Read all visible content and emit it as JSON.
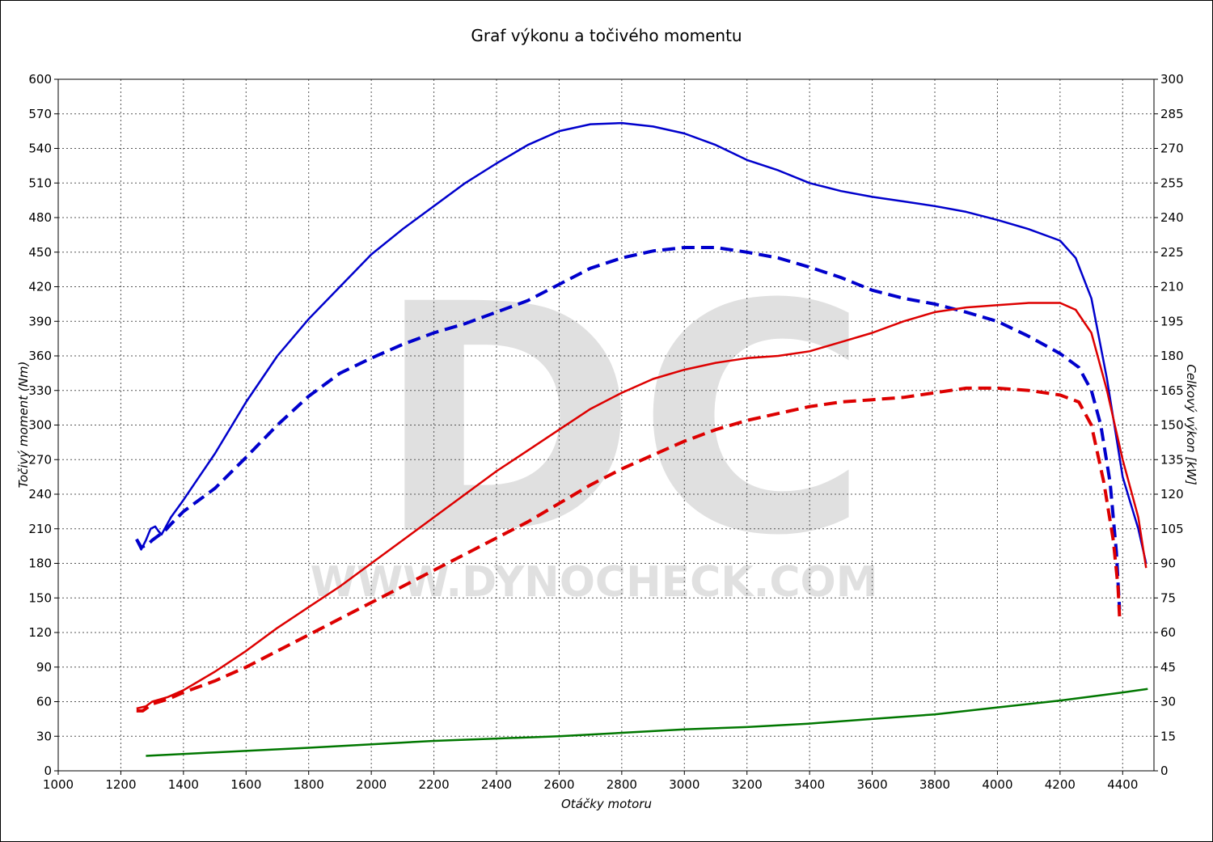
{
  "chart_data": {
    "type": "line",
    "title": "Graf výkonu a točivého momentu",
    "xlabel": "Otáčky motoru",
    "ylabel": "Točivý moment (Nm)",
    "y2label": "Celkový výkon [kW]",
    "watermark": {
      "logo": "DC",
      "text": "WWW.DYNOCHECK.COM"
    },
    "grid": true,
    "xlim": [
      1000,
      4500
    ],
    "ylim": [
      0,
      600
    ],
    "y2lim": [
      0,
      300
    ],
    "xticks": [
      1000,
      1200,
      1400,
      1600,
      1800,
      2000,
      2200,
      2400,
      2600,
      2800,
      3000,
      3200,
      3400,
      3600,
      3800,
      4000,
      4200,
      4400
    ],
    "yticks": [
      0,
      30,
      60,
      90,
      120,
      150,
      180,
      210,
      240,
      270,
      300,
      330,
      360,
      390,
      420,
      450,
      480,
      510,
      540,
      570,
      600
    ],
    "y2ticks": [
      0,
      15,
      30,
      45,
      60,
      75,
      90,
      105,
      120,
      135,
      150,
      165,
      180,
      195,
      210,
      225,
      240,
      255,
      270,
      285,
      300
    ],
    "series": [
      {
        "color": "#0000cc",
        "dash": "solid",
        "axis": "left",
        "points": [
          [
            1250,
            200
          ],
          [
            1265,
            192
          ],
          [
            1280,
            200
          ],
          [
            1295,
            210
          ],
          [
            1310,
            212
          ],
          [
            1320,
            208
          ],
          [
            1330,
            205
          ],
          [
            1340,
            210
          ],
          [
            1360,
            220
          ],
          [
            1400,
            235
          ],
          [
            1450,
            255
          ],
          [
            1500,
            275
          ],
          [
            1600,
            320
          ],
          [
            1700,
            360
          ],
          [
            1800,
            392
          ],
          [
            1900,
            420
          ],
          [
            2000,
            448
          ],
          [
            2100,
            470
          ],
          [
            2200,
            490
          ],
          [
            2300,
            510
          ],
          [
            2400,
            527
          ],
          [
            2500,
            543
          ],
          [
            2600,
            555
          ],
          [
            2700,
            561
          ],
          [
            2800,
            562
          ],
          [
            2900,
            559
          ],
          [
            3000,
            553
          ],
          [
            3100,
            543
          ],
          [
            3200,
            530
          ],
          [
            3300,
            521
          ],
          [
            3400,
            510
          ],
          [
            3500,
            503
          ],
          [
            3600,
            498
          ],
          [
            3700,
            494
          ],
          [
            3800,
            490
          ],
          [
            3900,
            485
          ],
          [
            4000,
            478
          ],
          [
            4100,
            470
          ],
          [
            4200,
            460
          ],
          [
            4250,
            445
          ],
          [
            4300,
            410
          ],
          [
            4350,
            340
          ],
          [
            4400,
            255
          ],
          [
            4450,
            210
          ],
          [
            4475,
            180
          ]
        ]
      },
      {
        "color": "#0000cc",
        "dash": "dashed",
        "axis": "left",
        "points": [
          [
            1250,
            201
          ],
          [
            1265,
            194
          ],
          [
            1285,
            196
          ],
          [
            1300,
            200
          ],
          [
            1320,
            204
          ],
          [
            1340,
            208
          ],
          [
            1360,
            214
          ],
          [
            1400,
            225
          ],
          [
            1500,
            245
          ],
          [
            1600,
            272
          ],
          [
            1700,
            300
          ],
          [
            1800,
            325
          ],
          [
            1900,
            345
          ],
          [
            2000,
            358
          ],
          [
            2100,
            370
          ],
          [
            2200,
            380
          ],
          [
            2300,
            388
          ],
          [
            2400,
            398
          ],
          [
            2500,
            408
          ],
          [
            2600,
            422
          ],
          [
            2700,
            436
          ],
          [
            2800,
            445
          ],
          [
            2900,
            451
          ],
          [
            3000,
            454
          ],
          [
            3100,
            454
          ],
          [
            3200,
            450
          ],
          [
            3300,
            445
          ],
          [
            3400,
            437
          ],
          [
            3500,
            428
          ],
          [
            3600,
            417
          ],
          [
            3700,
            410
          ],
          [
            3800,
            405
          ],
          [
            3900,
            398
          ],
          [
            4000,
            390
          ],
          [
            4100,
            377
          ],
          [
            4200,
            362
          ],
          [
            4260,
            350
          ],
          [
            4300,
            330
          ],
          [
            4330,
            300
          ],
          [
            4360,
            250
          ],
          [
            4380,
            190
          ],
          [
            4390,
            140
          ]
        ]
      },
      {
        "color": "#dd0000",
        "dash": "solid",
        "axis": "right",
        "points": [
          [
            1250,
            27
          ],
          [
            1280,
            28
          ],
          [
            1300,
            30
          ],
          [
            1350,
            32
          ],
          [
            1400,
            35
          ],
          [
            1500,
            43
          ],
          [
            1600,
            52
          ],
          [
            1700,
            62
          ],
          [
            1800,
            71
          ],
          [
            1900,
            80
          ],
          [
            2000,
            90
          ],
          [
            2100,
            100
          ],
          [
            2200,
            110
          ],
          [
            2300,
            120
          ],
          [
            2400,
            130
          ],
          [
            2500,
            139
          ],
          [
            2600,
            148
          ],
          [
            2700,
            157
          ],
          [
            2800,
            164
          ],
          [
            2900,
            170
          ],
          [
            3000,
            174
          ],
          [
            3100,
            177
          ],
          [
            3200,
            179
          ],
          [
            3300,
            180
          ],
          [
            3400,
            182
          ],
          [
            3500,
            186
          ],
          [
            3600,
            190
          ],
          [
            3700,
            195
          ],
          [
            3800,
            199
          ],
          [
            3900,
            201
          ],
          [
            4000,
            202
          ],
          [
            4100,
            203
          ],
          [
            4200,
            203
          ],
          [
            4250,
            200
          ],
          [
            4300,
            190
          ],
          [
            4350,
            165
          ],
          [
            4400,
            135
          ],
          [
            4450,
            110
          ],
          [
            4475,
            88
          ]
        ]
      },
      {
        "color": "#dd0000",
        "dash": "dashed",
        "axis": "right",
        "points": [
          [
            1250,
            26
          ],
          [
            1270,
            26
          ],
          [
            1300,
            29
          ],
          [
            1350,
            31
          ],
          [
            1400,
            34
          ],
          [
            1500,
            39
          ],
          [
            1600,
            45
          ],
          [
            1700,
            52
          ],
          [
            1800,
            59
          ],
          [
            1900,
            66
          ],
          [
            2000,
            73
          ],
          [
            2100,
            80
          ],
          [
            2200,
            87
          ],
          [
            2300,
            94
          ],
          [
            2400,
            101
          ],
          [
            2500,
            108
          ],
          [
            2600,
            116
          ],
          [
            2700,
            124
          ],
          [
            2800,
            131
          ],
          [
            2900,
            137
          ],
          [
            3000,
            143
          ],
          [
            3100,
            148
          ],
          [
            3200,
            152
          ],
          [
            3300,
            155
          ],
          [
            3400,
            158
          ],
          [
            3500,
            160
          ],
          [
            3600,
            161
          ],
          [
            3700,
            162
          ],
          [
            3800,
            164
          ],
          [
            3900,
            166
          ],
          [
            4000,
            166
          ],
          [
            4100,
            165
          ],
          [
            4200,
            163
          ],
          [
            4260,
            160
          ],
          [
            4300,
            150
          ],
          [
            4340,
            125
          ],
          [
            4370,
            100
          ],
          [
            4385,
            80
          ],
          [
            4390,
            67
          ]
        ]
      },
      {
        "color": "#007700",
        "dash": "solid",
        "axis": "left",
        "points": [
          [
            1280,
            13
          ],
          [
            1500,
            16
          ],
          [
            1800,
            20
          ],
          [
            2000,
            23
          ],
          [
            2200,
            26
          ],
          [
            2400,
            28
          ],
          [
            2600,
            30
          ],
          [
            2800,
            33
          ],
          [
            3000,
            36
          ],
          [
            3200,
            38
          ],
          [
            3400,
            41
          ],
          [
            3600,
            45
          ],
          [
            3800,
            49
          ],
          [
            4000,
            55
          ],
          [
            4200,
            61
          ],
          [
            4400,
            68
          ],
          [
            4480,
            71
          ]
        ]
      }
    ]
  }
}
